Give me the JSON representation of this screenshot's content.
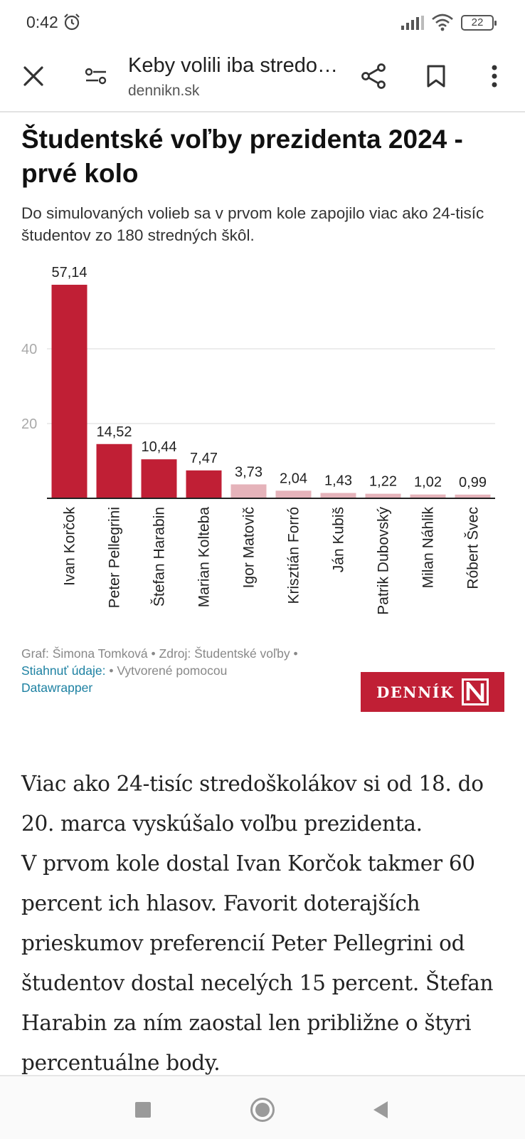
{
  "status_bar": {
    "time": "0:42",
    "battery": "22"
  },
  "toolbar": {
    "page_title": "Keby volili iba stredo…",
    "domain": "dennikn.sk"
  },
  "article": {
    "chart_title": "Študentské voľby prezidenta 2024 - prvé kolo",
    "chart_subtitle": "Do simulovaných volieb sa v prvom kole zapojilo viac ako 24-tisíc študentov zo 180 stredných škôl.",
    "notes": {
      "credit": "Graf: Šimona Tomková • Zdroj: Študentské voľby •",
      "download_link": "Stiahnuť údaje:",
      "created_with": "• Vytvorené pomocou",
      "datawrapper_link": "Datawrapper"
    },
    "logo_text": "DENNÍK",
    "body_paragraphs": [
      "Viac ako 24-tisíc stredoškolákov si od 18. do 20. marca vyskúšalo voľbu prezidenta.",
      "V prvom kole dostal Ivan Korčok takmer 60 percent ich hlasov. Favorit doterajších prieskumov preferencií Peter Pellegrini od študentov dostal necelých 15 percent. Štefan Harabin za ním zaostal len približne o štyri percentuálne body."
    ]
  },
  "chart_data": {
    "type": "bar",
    "title": "Študentské voľby prezidenta 2024 - prvé kolo",
    "categories": [
      "Ivan Korčok",
      "Peter Pellegrini",
      "Štefan Harabin",
      "Marian Kolteba",
      "Igor Matovič",
      "Krisztián Forró",
      "Ján Kubiš",
      "Patrik Dubovský",
      "Milan Náhlik",
      "Róbert Švec"
    ],
    "values": [
      57.14,
      14.52,
      10.44,
      7.47,
      3.73,
      2.04,
      1.43,
      1.22,
      1.02,
      0.99
    ],
    "value_labels": [
      "57,14",
      "14,52",
      "10,44",
      "7,47",
      "3,73",
      "2,04",
      "1,43",
      "1,22",
      "1,02",
      "0,99"
    ],
    "highlighted": [
      true,
      true,
      true,
      true,
      false,
      false,
      false,
      false,
      false,
      false
    ],
    "yticks": [
      20,
      40
    ],
    "ylim": [
      0,
      60
    ],
    "colors": {
      "highlight": "#c01f35",
      "muted": "#e5b3ba",
      "grid": "#e6e6e6",
      "axis": "#222222",
      "tick_label": "#aaaaaa"
    }
  }
}
